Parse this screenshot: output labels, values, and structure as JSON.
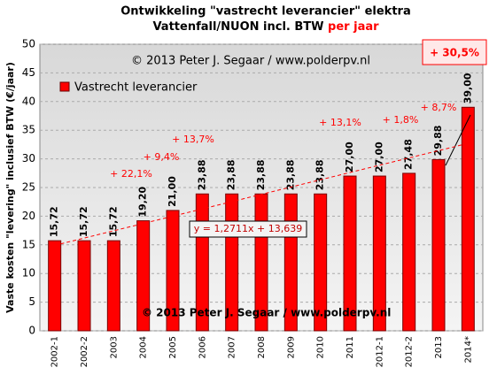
{
  "chart_data": {
    "type": "bar",
    "title_line1": "Ontwikkeling  \"vastrecht leverancier\" elektra",
    "title_line2": "Vattenfall/NUON incl. BTW ",
    "title_highlight": "per jaar",
    "ylabel": "Vaste kosten \"levering\" inclusief BTW (€/jaar)",
    "categories": [
      "2002-1",
      "2002-2",
      "2003",
      "2004",
      "2005",
      "2006",
      "2007",
      "2008",
      "2009",
      "2010",
      "2011",
      "2012-1",
      "2012-2",
      "2013",
      "2014*"
    ],
    "series": [
      {
        "name": "Vastrecht leverancier",
        "color": "#ff0000",
        "values": [
          15.72,
          15.72,
          15.72,
          19.2,
          21.0,
          23.88,
          23.88,
          23.88,
          23.88,
          23.88,
          27.0,
          27.0,
          27.48,
          29.88,
          39.0
        ],
        "value_labels": [
          "15,72",
          "15,72",
          "15,72",
          "19,20",
          "21,00",
          "23,88",
          "23,88",
          "23,88",
          "23,88",
          "23,88",
          "27,00",
          "27,00",
          "27,48",
          "29,88",
          "39,00"
        ]
      }
    ],
    "ylim": [
      0,
      50
    ],
    "yticks": [
      0,
      5,
      10,
      15,
      20,
      25,
      30,
      35,
      40,
      45,
      50
    ],
    "grid": true,
    "trendline": {
      "slope": 1.2711,
      "intercept": 13.639,
      "label": "y = 1,2711x + 13,639"
    },
    "annotations": {
      "copyright_top": "© 2013  Peter J. Segaar / www.polderpv.nl",
      "copyright_bottom": "© 2013 Peter J. Segaar / www.polderpv.nl",
      "total_change": "+ 30,5%",
      "changes": [
        "+ 22,1%",
        "+ 9,4%",
        "+ 13,7%",
        "+ 13,1%",
        "+ 1,8%",
        "+ 8,7%"
      ]
    }
  }
}
